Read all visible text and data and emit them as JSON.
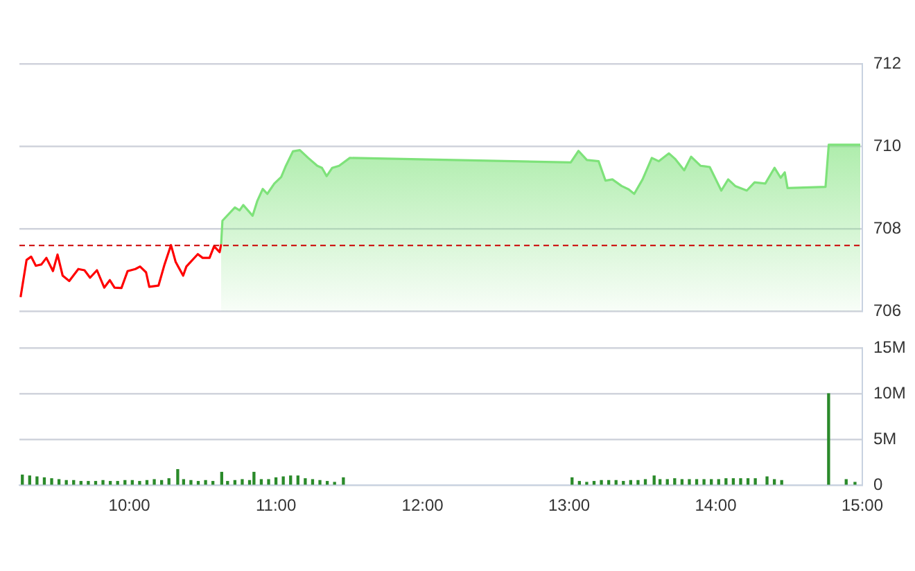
{
  "chart_data": [
    {
      "type": "area",
      "marker": "none",
      "grid": "y",
      "tick_labels": "y",
      "xlim": [
        9.25,
        15
      ],
      "ylim": [
        706,
        712
      ],
      "yticks": [
        706,
        708,
        710,
        712
      ],
      "series": [
        {
          "type": "line",
          "color": "#ff0000",
          "x": [
            9.258,
            9.299,
            9.33,
            9.362,
            9.4,
            9.434,
            9.479,
            9.51,
            9.545,
            9.59,
            9.652,
            9.694,
            9.732,
            9.779,
            9.829,
            9.867,
            9.899,
            9.946,
            9.988,
            10.041,
            10.073,
            10.114,
            10.136,
            10.199,
            10.24,
            10.284,
            10.316,
            10.367,
            10.389,
            10.467,
            10.5,
            10.547,
            10.578,
            10.616,
            10.626
          ],
          "values": [
            706.35,
            707.25,
            707.33,
            707.11,
            707.14,
            707.3,
            706.98,
            707.38,
            706.87,
            706.74,
            707.03,
            707.0,
            706.82,
            707.0,
            706.58,
            706.76,
            706.58,
            706.57,
            706.98,
            707.03,
            707.09,
            706.95,
            706.6,
            706.63,
            707.14,
            707.61,
            707.2,
            706.87,
            707.09,
            707.39,
            707.3,
            707.3,
            707.58,
            707.44,
            707.63
          ]
        },
        {
          "color": "#7ee27a",
          "x": [
            10.626,
            10.635,
            10.72,
            10.752,
            10.777,
            10.841,
            10.872,
            10.91,
            10.941,
            10.989,
            11.036,
            11.068,
            11.116,
            11.163,
            11.22,
            11.282,
            11.314,
            11.346,
            11.384,
            11.431,
            11.504,
            13.011,
            13.064,
            13.121,
            13.201,
            13.248,
            13.295,
            13.358,
            13.406,
            13.444,
            13.501,
            13.564,
            13.611,
            13.681,
            13.722,
            13.785,
            13.832,
            13.896,
            13.959,
            14.038,
            14.085,
            14.133,
            14.212,
            14.265,
            14.338,
            14.401,
            14.443,
            14.471,
            14.49,
            14.749,
            14.771,
            14.986
          ],
          "values": [
            707.63,
            708.2,
            708.52,
            708.45,
            708.58,
            708.32,
            708.67,
            708.97,
            708.85,
            709.1,
            709.26,
            709.53,
            709.88,
            709.91,
            709.72,
            709.53,
            709.48,
            709.28,
            709.48,
            709.53,
            709.72,
            709.61,
            709.89,
            709.67,
            709.64,
            709.17,
            709.2,
            709.04,
            708.96,
            708.85,
            709.2,
            709.72,
            709.64,
            709.83,
            709.7,
            709.42,
            709.75,
            709.53,
            709.5,
            708.93,
            709.2,
            709.04,
            708.93,
            709.13,
            709.1,
            709.48,
            709.24,
            709.37,
            708.99,
            709.02,
            710.04,
            710.04
          ]
        }
      ],
      "ref_lines": [
        {
          "axis": "y",
          "value": 707.6,
          "color": "#cc0000",
          "line_style": "dashed"
        }
      ]
    },
    {
      "type": "bar",
      "grid": "y",
      "xlim": [
        9.25,
        15
      ],
      "xticks": [
        {
          "value": 10,
          "label": "10:00"
        },
        {
          "value": 11,
          "label": "11:00"
        },
        {
          "value": 12,
          "label": "12:00"
        },
        {
          "value": 13,
          "label": "13:00"
        },
        {
          "value": 14,
          "label": "14:00"
        },
        {
          "value": 15,
          "label": "15:00"
        }
      ],
      "ylim": [
        0,
        15
      ],
      "yticks": [
        {
          "value": 0,
          "label": "0"
        },
        {
          "value": 5,
          "label": "5M"
        },
        {
          "value": 10,
          "label": "10M"
        },
        {
          "value": 15,
          "label": "15M"
        }
      ],
      "series": [
        {
          "color": "#2a8a2a",
          "x": [
            9.27,
            9.32,
            9.37,
            9.42,
            9.47,
            9.52,
            9.57,
            9.62,
            9.67,
            9.72,
            9.77,
            9.82,
            9.87,
            9.92,
            9.97,
            10.02,
            10.07,
            10.12,
            10.17,
            10.22,
            10.27,
            10.33,
            10.37,
            10.42,
            10.47,
            10.52,
            10.57,
            10.63,
            10.67,
            10.72,
            10.77,
            10.82,
            10.85,
            10.9,
            10.95,
            11.0,
            11.05,
            11.1,
            11.15,
            11.2,
            11.25,
            11.3,
            11.35,
            11.4,
            11.46,
            13.02,
            13.07,
            13.12,
            13.17,
            13.22,
            13.27,
            13.32,
            13.37,
            13.42,
            13.47,
            13.52,
            13.58,
            13.62,
            13.67,
            13.72,
            13.77,
            13.82,
            13.87,
            13.92,
            13.97,
            14.02,
            14.07,
            14.12,
            14.17,
            14.22,
            14.27,
            14.35,
            14.4,
            14.45,
            14.77,
            14.89,
            14.95
          ],
          "values": [
            1.1,
            1.0,
            0.9,
            0.8,
            0.7,
            0.6,
            0.5,
            0.5,
            0.4,
            0.4,
            0.4,
            0.5,
            0.4,
            0.4,
            0.5,
            0.5,
            0.4,
            0.5,
            0.6,
            0.5,
            0.7,
            1.7,
            0.6,
            0.5,
            0.4,
            0.5,
            0.4,
            1.4,
            0.4,
            0.5,
            0.6,
            0.5,
            1.4,
            0.6,
            0.6,
            0.8,
            0.9,
            1.0,
            1.0,
            0.7,
            0.6,
            0.5,
            0.4,
            0.3,
            0.8,
            0.8,
            0.4,
            0.3,
            0.4,
            0.5,
            0.5,
            0.5,
            0.4,
            0.5,
            0.5,
            0.6,
            1.0,
            0.6,
            0.6,
            0.7,
            0.6,
            0.6,
            0.6,
            0.6,
            0.6,
            0.6,
            0.7,
            0.7,
            0.7,
            0.7,
            0.7,
            0.9,
            0.6,
            0.5,
            10,
            0.6,
            0.3
          ]
        }
      ]
    }
  ]
}
